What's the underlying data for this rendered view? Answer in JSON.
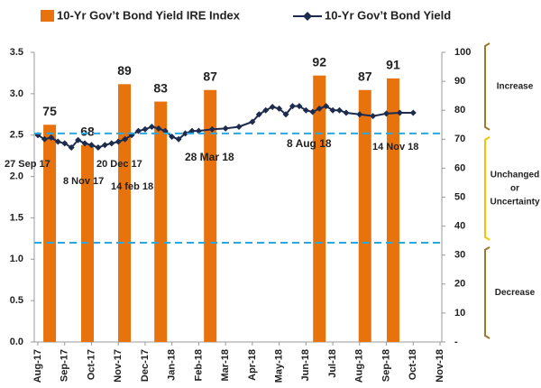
{
  "chart_data": {
    "type": "bar",
    "xlim": [
      0,
      15
    ],
    "xticks": [
      {
        "value": 0,
        "label": "Aug-17"
      },
      {
        "value": 1,
        "label": "Sep-17"
      },
      {
        "value": 2,
        "label": "Oct-17"
      },
      {
        "value": 3,
        "label": "Nov-17"
      },
      {
        "value": 4,
        "label": "Dec-17"
      },
      {
        "value": 5,
        "label": "Jan-18"
      },
      {
        "value": 6,
        "label": "Feb-18"
      },
      {
        "value": 7,
        "label": "Mar-18"
      },
      {
        "value": 8,
        "label": "Apr-18"
      },
      {
        "value": 9,
        "label": "May-18"
      },
      {
        "value": 10,
        "label": "Jun-18"
      },
      {
        "value": 11,
        "label": "Jul-18"
      },
      {
        "value": 12,
        "label": "Aug-18"
      },
      {
        "value": 13,
        "label": "Sep-18"
      },
      {
        "value": 14,
        "label": "Oct-18"
      },
      {
        "value": 15,
        "label": "Nov-18"
      }
    ],
    "ylim": [
      0,
      3.5
    ],
    "yticks": [
      {
        "value": 0,
        "label": "0.0"
      },
      0.5,
      {
        "value": 1,
        "label": "1.0"
      },
      1.5,
      {
        "value": 2,
        "label": "2.0"
      },
      2.5,
      {
        "value": 3,
        "label": "3.0"
      },
      3.5
    ],
    "y2lim": [
      0,
      100
    ],
    "y2ticks": [
      {
        "value": 0,
        "label": "-"
      },
      10,
      20,
      30,
      40,
      50,
      60,
      70,
      80,
      90,
      100
    ],
    "series": [
      {
        "name": "10-Yr Gov’t Bond Yield IRE Index",
        "type": "bar",
        "axis": "y2",
        "color": "#e8730c",
        "x": [
          0.44,
          1.85,
          3.23,
          4.58,
          6.43,
          10.5,
          12.2,
          13.25
        ],
        "values": [
          75,
          68,
          89,
          83,
          87,
          92,
          87,
          91
        ]
      },
      {
        "name": "10-Yr Gov’t Bond Yield",
        "type": "line",
        "color": "#1c2b4e",
        "x": [
          0,
          0.25,
          0.5,
          0.75,
          1,
          1.25,
          1.5,
          1.75,
          2,
          2.25,
          2.5,
          2.75,
          3,
          3.25,
          3.5,
          3.75,
          4,
          4.25,
          4.5,
          4.75,
          5,
          5.25,
          5.5,
          5.75,
          6,
          6.5,
          7,
          7.5,
          8,
          8.25,
          8.5,
          8.75,
          9,
          9.25,
          9.5,
          9.75,
          10,
          10.25,
          10.5,
          10.75,
          11,
          11.25,
          11.5,
          12,
          12.5,
          13,
          13.5,
          14
        ],
        "values": [
          2.5,
          2.45,
          2.47,
          2.42,
          2.4,
          2.35,
          2.44,
          2.4,
          2.38,
          2.35,
          2.38,
          2.4,
          2.42,
          2.45,
          2.5,
          2.55,
          2.57,
          2.6,
          2.58,
          2.55,
          2.48,
          2.45,
          2.52,
          2.55,
          2.55,
          2.57,
          2.58,
          2.6,
          2.66,
          2.75,
          2.8,
          2.84,
          2.82,
          2.75,
          2.85,
          2.85,
          2.8,
          2.78,
          2.82,
          2.85,
          2.8,
          2.8,
          2.77,
          2.75,
          2.73,
          2.76,
          2.77,
          2.77
        ]
      }
    ],
    "reference_lines": [
      2.52,
      1.2
    ],
    "reference_color": "#29a8e0",
    "annotations": [
      "27 Sep 17",
      "8 Nov 17",
      "20 Dec 17",
      "14 feb 18",
      "28 Mar 18",
      "8 Aug 18",
      "14 Nov 18"
    ],
    "zones": [
      {
        "lines": [
          "Increase"
        ],
        "y2range": [
          72,
          100
        ],
        "color": "#9b7b2c"
      },
      {
        "lines": [
          "Unchanged",
          "or",
          "Uncertainty"
        ],
        "y2range": [
          34,
          72
        ],
        "color": "#f5c400"
      },
      {
        "lines": [
          "Decrease"
        ],
        "y2range": [
          0,
          34
        ],
        "color": "#9b7b2c"
      }
    ]
  }
}
